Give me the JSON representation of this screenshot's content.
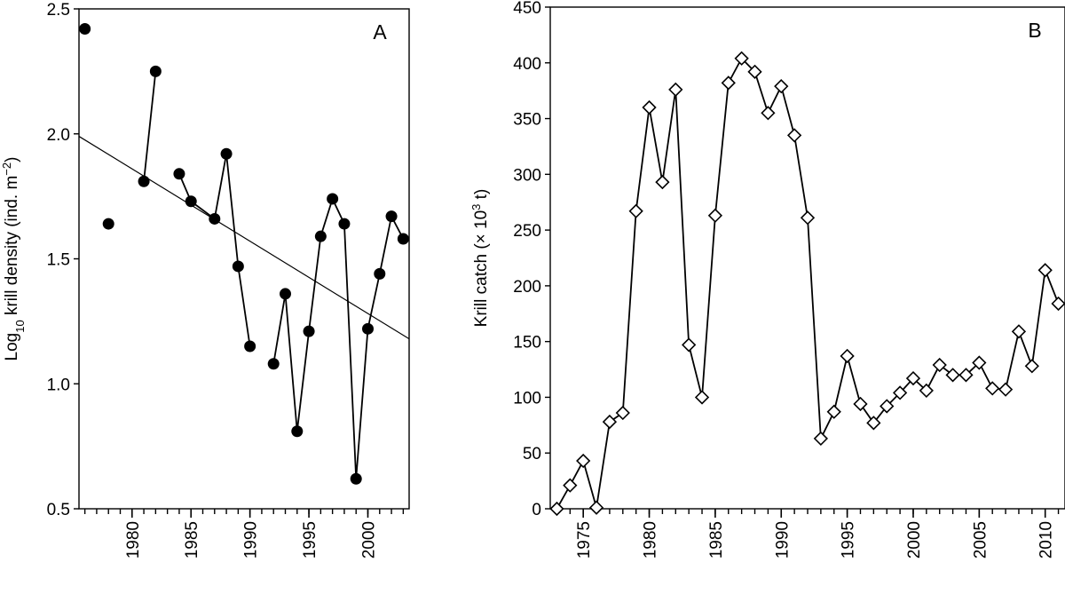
{
  "chart_data": [
    {
      "type": "scatter",
      "panel_label": "A",
      "title": "",
      "xlabel": "",
      "ylabel_parts": [
        "Log",
        "10",
        " krill density (ind. m",
        "−2",
        ")"
      ],
      "xlim": [
        1975.5,
        2003.5
      ],
      "ylim": [
        0.5,
        2.5
      ],
      "x_ticks": [
        1980,
        1985,
        1990,
        1995,
        2000
      ],
      "y_ticks": [
        0.5,
        1.0,
        1.5,
        2.0,
        2.5
      ],
      "y_tick_labels": [
        "0.5",
        "1.0",
        "1.5",
        "2.0",
        "2.5"
      ],
      "x_minor_step": 1,
      "points": [
        [
          1976,
          2.42
        ],
        [
          1978,
          1.64
        ],
        [
          1981,
          1.81
        ],
        [
          1982,
          2.25
        ],
        [
          1984,
          1.84
        ],
        [
          1985,
          1.73
        ],
        [
          1987,
          1.66
        ],
        [
          1988,
          1.92
        ],
        [
          1989,
          1.47
        ],
        [
          1990,
          1.15
        ],
        [
          1992,
          1.08
        ],
        [
          1993,
          1.36
        ],
        [
          1994,
          0.81
        ],
        [
          1995,
          1.21
        ],
        [
          1996,
          1.59
        ],
        [
          1997,
          1.74
        ],
        [
          1998,
          1.64
        ],
        [
          1999,
          0.62
        ],
        [
          2000,
          1.22
        ],
        [
          2001,
          1.44
        ],
        [
          2002,
          1.67
        ],
        [
          2003,
          1.58
        ]
      ],
      "connected_runs": [
        [
          1981,
          1982
        ],
        [
          1984,
          1990
        ],
        [
          1992,
          2003
        ]
      ],
      "trend_line": {
        "x": [
          1975.5,
          2003.5
        ],
        "y": [
          1.99,
          1.18
        ]
      },
      "marker": "filled-circle"
    },
    {
      "type": "line",
      "panel_label": "B",
      "title": "",
      "xlabel": "",
      "ylabel_parts": [
        "Krill catch (× 10",
        "3",
        " t)"
      ],
      "xlim": [
        1972.5,
        2011.5
      ],
      "ylim": [
        0,
        450
      ],
      "x_ticks": [
        1975,
        1980,
        1985,
        1990,
        1995,
        2000,
        2005,
        2010
      ],
      "y_ticks": [
        0,
        50,
        100,
        150,
        200,
        250,
        300,
        350,
        400,
        450
      ],
      "y_tick_labels": [
        "0",
        "50",
        "100",
        "150",
        "200",
        "250",
        "300",
        "350",
        "400",
        "450"
      ],
      "x_minor_step": 1,
      "x": [
        1973,
        1974,
        1975,
        1976,
        1977,
        1978,
        1979,
        1980,
        1981,
        1982,
        1983,
        1984,
        1985,
        1986,
        1987,
        1988,
        1989,
        1990,
        1991,
        1992,
        1993,
        1994,
        1995,
        1996,
        1997,
        1998,
        1999,
        2000,
        2001,
        2002,
        2003,
        2004,
        2005,
        2006,
        2007,
        2008,
        2009,
        2010,
        2011
      ],
      "y": [
        0,
        21,
        43,
        1,
        78,
        86,
        267,
        360,
        293,
        376,
        147,
        100,
        263,
        382,
        404,
        392,
        355,
        379,
        335,
        261,
        63,
        87,
        137,
        94,
        77,
        92,
        104,
        117,
        106,
        129,
        120,
        120,
        131,
        108,
        107,
        159,
        128,
        214,
        184
      ],
      "marker": "open-diamond"
    }
  ]
}
